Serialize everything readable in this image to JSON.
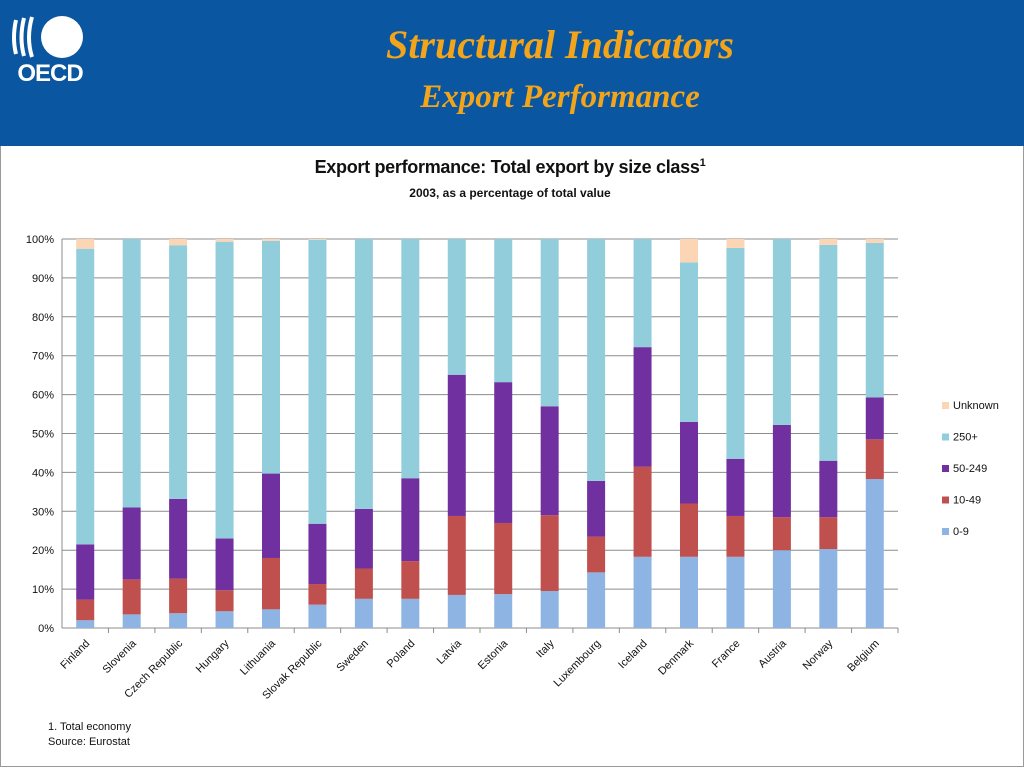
{
  "header": {
    "logo_text": "OECD",
    "title": "Structural Indicators",
    "subtitle": "Export Performance"
  },
  "colors": {
    "header_bg": "#0a56a0",
    "title_color": "#f2a51a"
  },
  "chart_data": {
    "type": "bar",
    "stacked": true,
    "title": "Export performance: Total export by size class",
    "title_superscript": "1",
    "subtitle": "2003, as a percentage of total value",
    "xlabel": "",
    "ylabel": "",
    "ylim": [
      0,
      100
    ],
    "y_ticks": [
      "0%",
      "10%",
      "20%",
      "30%",
      "40%",
      "50%",
      "60%",
      "70%",
      "80%",
      "90%",
      "100%"
    ],
    "grid": true,
    "legend_position": "right",
    "categories": [
      "Finland",
      "Slovenia",
      "Czech Republic",
      "Hungary",
      "Lithuania",
      "Slovak Republic",
      "Sweden",
      "Poland",
      "Latvia",
      "Estonia",
      "Italy",
      "Luxembourg",
      "Iceland",
      "Denmark",
      "France",
      "Austria",
      "Norway",
      "Belgium"
    ],
    "series": [
      {
        "name": "0-9",
        "color": "#8db4e2",
        "values": [
          2,
          3.5,
          3.8,
          4.3,
          4.8,
          6,
          7.5,
          7.5,
          8.5,
          8.7,
          9.5,
          14.3,
          18.3,
          18.3,
          18.3,
          20,
          20.3,
          38.3
        ]
      },
      {
        "name": "10-49",
        "color": "#c0504d",
        "values": [
          5.3,
          9,
          8.9,
          5.4,
          13.2,
          5.3,
          7.8,
          9.7,
          20.3,
          18.3,
          19.5,
          9.2,
          23.2,
          13.7,
          10.5,
          8.5,
          8.2,
          10.2
        ]
      },
      {
        "name": "50-249",
        "color": "#7030a0",
        "values": [
          14.2,
          18.5,
          20.5,
          13.3,
          21.7,
          15.5,
          15.3,
          21.3,
          36.3,
          36.2,
          28,
          14.3,
          30.7,
          21,
          14.7,
          23.7,
          14.5,
          10.8
        ]
      },
      {
        "name": "250+",
        "color": "#92cddc",
        "values": [
          76,
          69,
          65.2,
          76.3,
          59.8,
          73,
          69.4,
          61.5,
          34.9,
          36.8,
          43,
          62.2,
          27.8,
          41,
          54.2,
          47.8,
          55.5,
          39.7
        ]
      },
      {
        "name": "Unknown",
        "color": "#fcd5b4",
        "values": [
          2.5,
          0,
          1.6,
          0.7,
          0.5,
          0.2,
          0,
          0,
          0,
          0,
          0,
          0,
          0,
          6,
          2.3,
          0,
          1.5,
          1
        ]
      }
    ],
    "legend_order": [
      "Unknown",
      "250+",
      "50-249",
      "10-49",
      "0-9"
    ]
  },
  "footnotes": {
    "note1": "1. Total economy",
    "source": "Source: Eurostat"
  }
}
